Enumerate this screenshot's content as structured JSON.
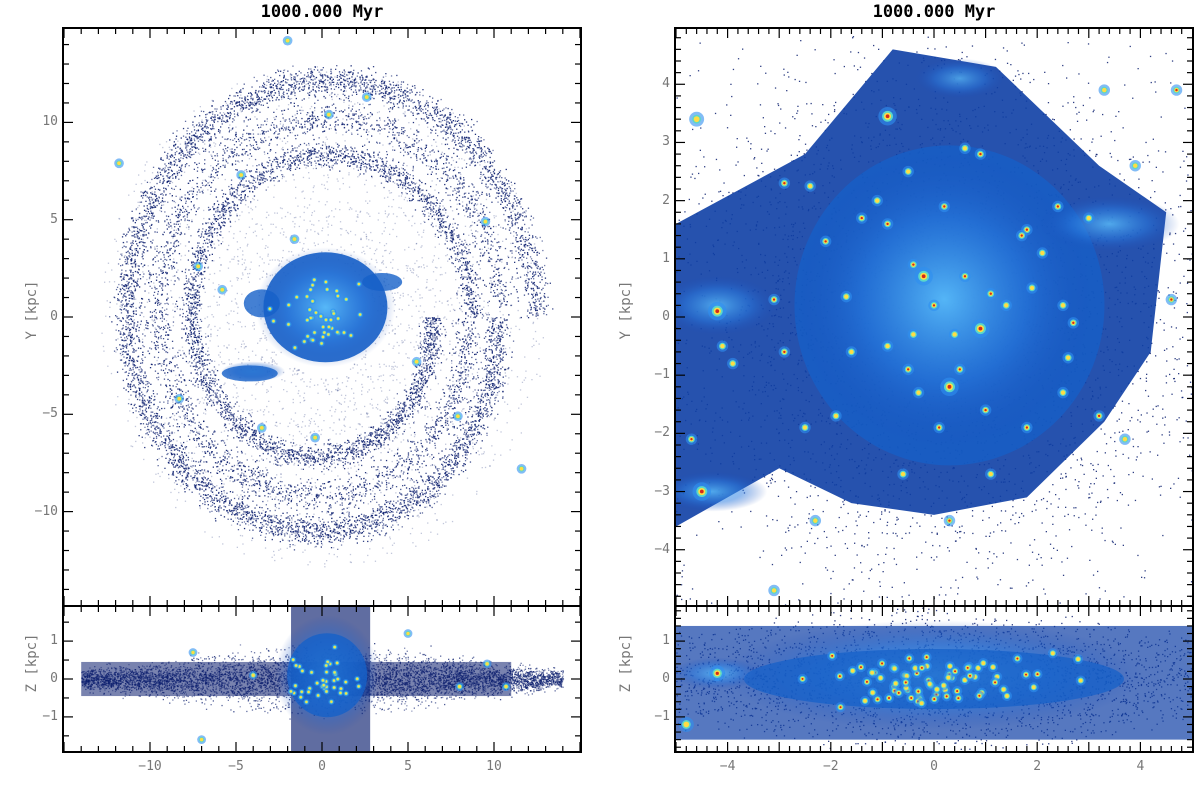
{
  "figure": {
    "left": {
      "title": "1000.000 Myr",
      "top_panel": {
        "ylabel": "Y [kpc]",
        "y_ticks": [
          "10",
          "5",
          "0",
          "−5",
          "−10"
        ],
        "y_range": [
          -14.8,
          14.8
        ],
        "x_range": [
          -15,
          15
        ]
      },
      "bottom_panel": {
        "ylabel": "Z [kpc]",
        "y_ticks": [
          "1",
          "0",
          "−1"
        ],
        "y_range": [
          -1.9,
          1.9
        ],
        "x_ticks": [
          "−10",
          "−5",
          "0",
          "5",
          "10"
        ],
        "x_range": [
          -15,
          15
        ]
      }
    },
    "right": {
      "title": "1000.000 Myr",
      "top_panel": {
        "ylabel": "Y [kpc]",
        "y_ticks": [
          "4",
          "3",
          "2",
          "1",
          "0",
          "−1",
          "−2",
          "−3",
          "−4"
        ],
        "y_range": [
          -4.95,
          4.95
        ],
        "x_range": [
          -5,
          5
        ]
      },
      "bottom_panel": {
        "ylabel": "Z [kpc]",
        "y_ticks": [
          "1",
          "0",
          "−1"
        ],
        "y_range": [
          -1.9,
          1.9
        ],
        "x_ticks": [
          "−4",
          "−2",
          "0",
          "2",
          "4"
        ],
        "x_range": [
          -5,
          5
        ]
      }
    },
    "colors": {
      "sparse": "#0b1e6e",
      "mid": "#1560c8",
      "dense": "#36a8ff",
      "clump_core": "#ffdd44",
      "clump_hot": "#d22a1a"
    }
  }
}
